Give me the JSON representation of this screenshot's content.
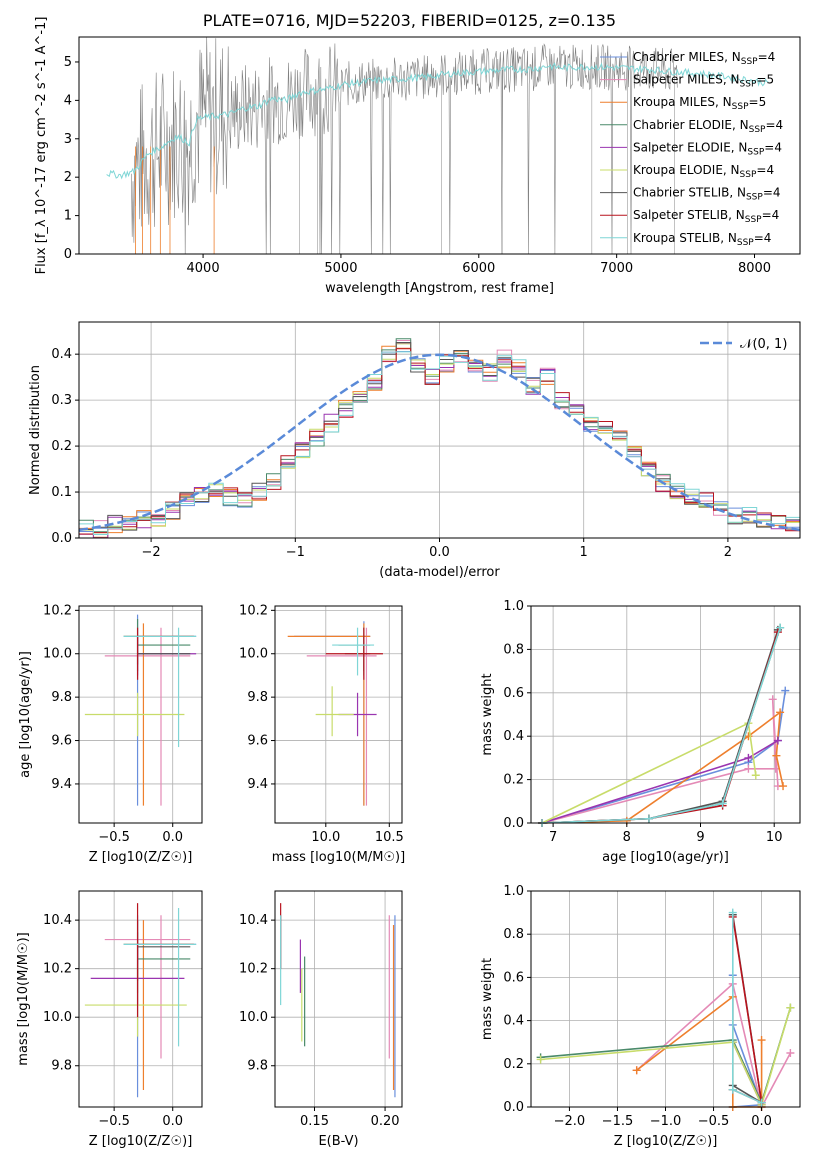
{
  "figure": {
    "title": "PLATE=0716, MJD=52203, FIBERID=0125, z=0.135"
  },
  "series_models": [
    {
      "name": "Chabrier MILES",
      "nssp": "4",
      "color": "#6a8fdc"
    },
    {
      "name": "Salpeter MILES",
      "nssp": "5",
      "color": "#e48ab6"
    },
    {
      "name": "Kroupa MILES",
      "nssp": "5",
      "color": "#ee7f2d"
    },
    {
      "name": "Chabrier ELODIE",
      "nssp": "4",
      "color": "#4a8a6a"
    },
    {
      "name": "Salpeter ELODIE",
      "nssp": "4",
      "color": "#9a35b0"
    },
    {
      "name": "Kroupa ELODIE",
      "nssp": "4",
      "color": "#c8dc6a"
    },
    {
      "name": "Chabrier STELIB",
      "nssp": "4",
      "color": "#555555"
    },
    {
      "name": "Salpeter STELIB",
      "nssp": "4",
      "color": "#b8141e"
    },
    {
      "name": "Kroupa STELIB",
      "nssp": "4",
      "color": "#7fd6d6"
    }
  ],
  "chart_data": [
    {
      "id": "spectrum",
      "type": "line",
      "xlabel": "wavelength [Angstrom, rest frame]",
      "ylabel": "Flux [f_λ 10^-17 erg cm^-2 s^-1 A^-1]",
      "xlim": [
        3100,
        8330
      ],
      "ylim": [
        0,
        5.65
      ],
      "xticks": [
        4000,
        5000,
        6000,
        7000,
        8000
      ],
      "yticks": [
        0,
        1,
        2,
        3,
        4,
        5
      ],
      "legend_position": "upper-right",
      "data_color": "#808080",
      "model_color": "#7fd6d6",
      "model_curve": {
        "x": [
          3300,
          3400,
          3500,
          3600,
          3700,
          3800,
          3850,
          3900,
          3950,
          4000,
          4100,
          4200,
          4300,
          4400,
          4500,
          4600,
          4700,
          4800,
          4900,
          5000,
          5200,
          5400,
          5600,
          5800,
          6000,
          6200,
          6400,
          6500,
          6600,
          6800,
          7000,
          7200,
          7400,
          7600,
          7800,
          8000,
          8100
        ],
        "y": [
          2.1,
          2.05,
          2.15,
          2.6,
          2.8,
          3.05,
          3.0,
          2.9,
          3.5,
          3.55,
          3.6,
          3.65,
          3.8,
          3.85,
          4.05,
          4.0,
          4.2,
          4.25,
          4.3,
          4.4,
          4.5,
          4.55,
          4.6,
          4.7,
          4.75,
          4.8,
          4.82,
          4.9,
          4.85,
          4.88,
          4.85,
          4.82,
          4.75,
          4.7,
          4.62,
          4.5,
          4.45
        ]
      }
    },
    {
      "id": "residuals",
      "type": "bar",
      "xlabel": "(data-model)/error",
      "ylabel": "Normed distribution",
      "xlim": [
        -2.5,
        2.5
      ],
      "ylim": [
        0,
        0.47
      ],
      "xticks": [
        -2,
        -1,
        0,
        1,
        2
      ],
      "yticks": [
        0.0,
        0.1,
        0.2,
        0.3,
        0.4
      ],
      "bin_width": 0.1,
      "bin_start": -2.5,
      "histogram": [
        0.02,
        0.02,
        0.03,
        0.03,
        0.04,
        0.04,
        0.06,
        0.08,
        0.09,
        0.1,
        0.09,
        0.08,
        0.1,
        0.12,
        0.17,
        0.19,
        0.22,
        0.25,
        0.28,
        0.3,
        0.34,
        0.4,
        0.42,
        0.38,
        0.35,
        0.38,
        0.39,
        0.37,
        0.36,
        0.39,
        0.37,
        0.33,
        0.35,
        0.3,
        0.27,
        0.25,
        0.24,
        0.22,
        0.18,
        0.15,
        0.12,
        0.1,
        0.09,
        0.08,
        0.06,
        0.05,
        0.05,
        0.04,
        0.03,
        0.03
      ],
      "gaussian": {
        "name": "𝒩(0, 1)",
        "color": "#5a8ad8"
      },
      "legend_position": "upper-right"
    },
    {
      "id": "z_vs_age",
      "type": "scatter",
      "xlabel": "Z [log10(Z/Z☉)]",
      "ylabel": "age [log10(age/yr)]",
      "xlim": [
        -0.8,
        0.25
      ],
      "ylim": [
        9.22,
        10.22
      ],
      "xticks": [
        -0.5,
        0.0
      ],
      "yticks": [
        9.4,
        9.6,
        9.8,
        10.0,
        10.2
      ],
      "points": [
        {
          "x": -0.3,
          "y": 10.08,
          "xe": [
            -0.42,
            0.2
          ],
          "ye": [
            9.3,
            10.18
          ],
          "color": "#6a8fdc"
        },
        {
          "x": -0.1,
          "y": 9.99,
          "xe": [
            -0.58,
            0.15
          ],
          "ye": [
            9.3,
            10.12
          ],
          "color": "#e48ab6"
        },
        {
          "x": -0.25,
          "y": 10.08,
          "xe": [
            -0.42,
            0.18
          ],
          "ye": [
            9.3,
            10.14
          ],
          "color": "#ee7f2d"
        },
        {
          "x": -0.3,
          "y": 10.04,
          "xe": [
            -0.3,
            0.15
          ],
          "ye": [
            9.92,
            10.16
          ],
          "color": "#4a8a6a"
        },
        {
          "x": -0.3,
          "y": 10.0,
          "xe": [
            -0.3,
            0.2
          ],
          "ye": [
            9.9,
            10.08
          ],
          "color": "#9a35b0"
        },
        {
          "x": -0.3,
          "y": 9.72,
          "xe": [
            -0.75,
            0.1
          ],
          "ye": [
            9.62,
            9.82
          ],
          "color": "#c8dc6a"
        },
        {
          "x": -0.3,
          "y": 10.0,
          "xe": [
            -0.3,
            0.15
          ],
          "ye": [
            9.95,
            10.08
          ],
          "color": "#555555"
        },
        {
          "x": -0.3,
          "y": 10.08,
          "xe": [
            -0.3,
            0.18
          ],
          "ye": [
            9.88,
            10.12
          ],
          "color": "#b8141e"
        },
        {
          "x": 0.05,
          "y": 10.08,
          "xe": [
            -0.42,
            0.2
          ],
          "ye": [
            9.57,
            10.12
          ],
          "color": "#7fd6d6"
        }
      ]
    },
    {
      "id": "mass_vs_age",
      "type": "scatter",
      "xlabel": "mass [log10(M/M☉)]",
      "ylabel": "",
      "xlim": [
        9.6,
        10.6
      ],
      "ylim": [
        9.22,
        10.22
      ],
      "xticks": [
        10.0,
        10.5
      ],
      "yticks": [
        9.4,
        9.6,
        9.8,
        10.0,
        10.2
      ],
      "points": [
        {
          "x": 10.3,
          "y": 10.08,
          "xe": [
            9.75,
            10.35
          ],
          "ye": [
            9.3,
            10.15
          ],
          "color": "#6a8fdc"
        },
        {
          "x": 10.32,
          "y": 9.99,
          "xe": [
            9.85,
            10.4
          ],
          "ye": [
            9.3,
            10.12
          ],
          "color": "#e48ab6"
        },
        {
          "x": 10.3,
          "y": 10.08,
          "xe": [
            9.7,
            10.35
          ],
          "ye": [
            9.3,
            10.14
          ],
          "color": "#ee7f2d"
        },
        {
          "x": 10.3,
          "y": 10.04,
          "xe": [
            10.1,
            10.35
          ],
          "ye": [
            9.9,
            10.12
          ],
          "color": "#4a8a6a"
        },
        {
          "x": 10.25,
          "y": 9.72,
          "xe": [
            10.1,
            10.4
          ],
          "ye": [
            9.62,
            9.82
          ],
          "color": "#9a35b0"
        },
        {
          "x": 10.05,
          "y": 9.72,
          "xe": [
            9.92,
            10.22
          ],
          "ye": [
            9.62,
            9.85
          ],
          "color": "#c8dc6a"
        },
        {
          "x": 10.3,
          "y": 10.0,
          "xe": [
            10.15,
            10.35
          ],
          "ye": [
            9.92,
            10.08
          ],
          "color": "#555555"
        },
        {
          "x": 10.3,
          "y": 10.0,
          "xe": [
            10.0,
            10.45
          ],
          "ye": [
            9.88,
            10.12
          ],
          "color": "#b8141e"
        },
        {
          "x": 10.25,
          "y": 10.04,
          "xe": [
            10.05,
            10.38
          ],
          "ye": [
            9.9,
            10.12
          ],
          "color": "#7fd6d6"
        }
      ]
    },
    {
      "id": "age_vs_weight",
      "type": "line",
      "xlabel": "age [log10(age/yr)]",
      "ylabel": "mass weight",
      "xlim": [
        6.7,
        10.35
      ],
      "ylim": [
        0,
        1.0
      ],
      "xticks": [
        7,
        8,
        9,
        10
      ],
      "yticks": [
        0.0,
        0.2,
        0.4,
        0.6,
        0.8,
        1.0
      ],
      "series": [
        {
          "color": "#6a8fdc",
          "x": [
            6.85,
            9.65,
            10.05,
            10.15
          ],
          "y": [
            0.0,
            0.28,
            0.38,
            0.61
          ]
        },
        {
          "color": "#e48ab6",
          "x": [
            6.85,
            9.65,
            10.02,
            9.98,
            10.05
          ],
          "y": [
            0.0,
            0.25,
            0.25,
            0.57,
            0.17
          ]
        },
        {
          "color": "#ee7f2d",
          "x": [
            6.85,
            8.0,
            9.65,
            10.08,
            10.03,
            10.12
          ],
          "y": [
            0.0,
            0.01,
            0.4,
            0.51,
            0.31,
            0.17
          ]
        },
        {
          "color": "#4a8a6a",
          "x": [
            6.85,
            8.3,
            9.3,
            10.08
          ],
          "y": [
            0.0,
            0.02,
            0.09,
            0.9
          ]
        },
        {
          "color": "#9a35b0",
          "x": [
            6.85,
            9.65,
            10.05
          ],
          "y": [
            0.0,
            0.3,
            0.38
          ]
        },
        {
          "color": "#c8dc6a",
          "x": [
            6.85,
            9.65,
            9.75
          ],
          "y": [
            0.0,
            0.46,
            0.22
          ]
        },
        {
          "color": "#555555",
          "x": [
            6.85,
            8.3,
            9.3,
            10.05
          ],
          "y": [
            0.0,
            0.02,
            0.1,
            0.89
          ]
        },
        {
          "color": "#b8141e",
          "x": [
            6.85,
            8.3,
            9.3,
            10.05
          ],
          "y": [
            0.0,
            0.02,
            0.08,
            0.88
          ]
        },
        {
          "color": "#7fd6d6",
          "x": [
            6.85,
            8.3,
            9.3,
            10.08
          ],
          "y": [
            0.0,
            0.02,
            0.09,
            0.9
          ]
        }
      ]
    },
    {
      "id": "z_vs_mass",
      "type": "scatter",
      "xlabel": "Z [log10(Z/Z☉)]",
      "ylabel": "mass [log10(M/M☉)]",
      "xlim": [
        -0.8,
        0.25
      ],
      "ylim": [
        9.63,
        10.52
      ],
      "xticks": [
        -0.5,
        0.0
      ],
      "yticks": [
        9.8,
        10.0,
        10.2,
        10.4
      ],
      "points": [
        {
          "x": -0.3,
          "y": 10.3,
          "xe": [
            -0.42,
            0.2
          ],
          "ye": [
            9.67,
            10.42
          ],
          "color": "#6a8fdc"
        },
        {
          "x": -0.1,
          "y": 10.32,
          "xe": [
            -0.58,
            0.15
          ],
          "ye": [
            9.83,
            10.42
          ],
          "color": "#e48ab6"
        },
        {
          "x": -0.25,
          "y": 10.3,
          "xe": [
            -0.42,
            0.18
          ],
          "ye": [
            9.7,
            10.4
          ],
          "color": "#ee7f2d"
        },
        {
          "x": -0.3,
          "y": 10.24,
          "xe": [
            -0.3,
            0.15
          ],
          "ye": [
            10.1,
            10.35
          ],
          "color": "#4a8a6a"
        },
        {
          "x": -0.3,
          "y": 10.16,
          "xe": [
            -0.7,
            0.1
          ],
          "ye": [
            10.05,
            10.3
          ],
          "color": "#9a35b0"
        },
        {
          "x": -0.3,
          "y": 10.05,
          "xe": [
            -0.75,
            0.12
          ],
          "ye": [
            9.92,
            10.22
          ],
          "color": "#c8dc6a"
        },
        {
          "x": -0.3,
          "y": 10.29,
          "xe": [
            -0.3,
            0.15
          ],
          "ye": [
            10.15,
            10.4
          ],
          "color": "#555555"
        },
        {
          "x": -0.3,
          "y": 10.3,
          "xe": [
            -0.3,
            0.18
          ],
          "ye": [
            10.0,
            10.47
          ],
          "color": "#b8141e"
        },
        {
          "x": 0.05,
          "y": 10.3,
          "xe": [
            -0.42,
            0.2
          ],
          "ye": [
            9.88,
            10.45
          ],
          "color": "#7fd6d6"
        }
      ]
    },
    {
      "id": "ebv_vs_mass",
      "type": "scatter",
      "xlabel": "E(B-V)",
      "ylabel": "",
      "xlim": [
        0.122,
        0.212
      ],
      "ylim": [
        9.63,
        10.52
      ],
      "xticks": [
        0.15,
        0.2
      ],
      "yticks": [
        9.8,
        10.0,
        10.2,
        10.4
      ],
      "points": [
        {
          "x": 0.207,
          "y": 10.3,
          "ye": [
            9.67,
            10.42
          ],
          "color": "#6a8fdc"
        },
        {
          "x": 0.203,
          "y": 10.32,
          "ye": [
            9.83,
            10.42
          ],
          "color": "#e48ab6"
        },
        {
          "x": 0.206,
          "y": 10.3,
          "ye": [
            9.7,
            10.38
          ],
          "color": "#ee7f2d"
        },
        {
          "x": 0.143,
          "y": 10.1,
          "ye": [
            9.88,
            10.25
          ],
          "color": "#4a8a6a"
        },
        {
          "x": 0.14,
          "y": 10.2,
          "ye": [
            10.1,
            10.32
          ],
          "color": "#9a35b0"
        },
        {
          "x": 0.141,
          "y": 10.05,
          "ye": [
            9.9,
            10.2
          ],
          "color": "#c8dc6a"
        },
        {
          "x": 0.126,
          "y": 10.3,
          "ye": [
            10.2,
            10.42
          ],
          "color": "#555555"
        },
        {
          "x": 0.126,
          "y": 10.35,
          "ye": [
            10.2,
            10.47
          ],
          "color": "#b8141e"
        },
        {
          "x": 0.126,
          "y": 10.2,
          "ye": [
            10.05,
            10.42
          ],
          "color": "#7fd6d6"
        }
      ]
    },
    {
      "id": "z_vs_weight",
      "type": "line",
      "xlabel": "Z [log10(Z/Z☉)]",
      "ylabel": "mass weight",
      "xlim": [
        -2.4,
        0.4
      ],
      "ylim": [
        0,
        1.0
      ],
      "xticks": [
        -2.0,
        -1.5,
        -1.0,
        -0.5,
        0.0
      ],
      "yticks": [
        0.0,
        0.2,
        0.4,
        0.6,
        0.8,
        1.0
      ],
      "series": [
        {
          "color": "#6a8fdc",
          "x": [
            -0.3,
            -0.3,
            0.0,
            -0.3
          ],
          "y": [
            0.61,
            0.38,
            0.01,
            0.0
          ]
        },
        {
          "color": "#e48ab6",
          "x": [
            -1.3,
            -0.3,
            0.0,
            0.3
          ],
          "y": [
            0.17,
            0.57,
            0.0,
            0.25
          ]
        },
        {
          "color": "#ee7f2d",
          "x": [
            -1.3,
            -0.3,
            -0.3,
            0.0,
            0.0
          ],
          "y": [
            0.17,
            0.51,
            0.0,
            0.0,
            0.31
          ]
        },
        {
          "color": "#4a8a6a",
          "x": [
            -2.3,
            -0.3,
            0.0,
            0.3
          ],
          "y": [
            0.23,
            0.31,
            0.02,
            0.46
          ]
        },
        {
          "color": "#9a35b0",
          "x": [
            -0.3,
            0.0
          ],
          "y": [
            0.3,
            0.01
          ]
        },
        {
          "color": "#c8dc6a",
          "x": [
            -2.3,
            -0.3,
            0.0,
            0.3
          ],
          "y": [
            0.22,
            0.3,
            0.01,
            0.46
          ]
        },
        {
          "color": "#555555",
          "x": [
            -0.3,
            0.0,
            -0.3
          ],
          "y": [
            0.89,
            0.02,
            0.1
          ]
        },
        {
          "color": "#b8141e",
          "x": [
            -0.3,
            0.0,
            -0.3
          ],
          "y": [
            0.88,
            0.02,
            0.08
          ]
        },
        {
          "color": "#7fd6d6",
          "x": [
            -0.3,
            -0.3,
            0.0
          ],
          "y": [
            0.9,
            0.08,
            0.02
          ]
        }
      ]
    }
  ]
}
